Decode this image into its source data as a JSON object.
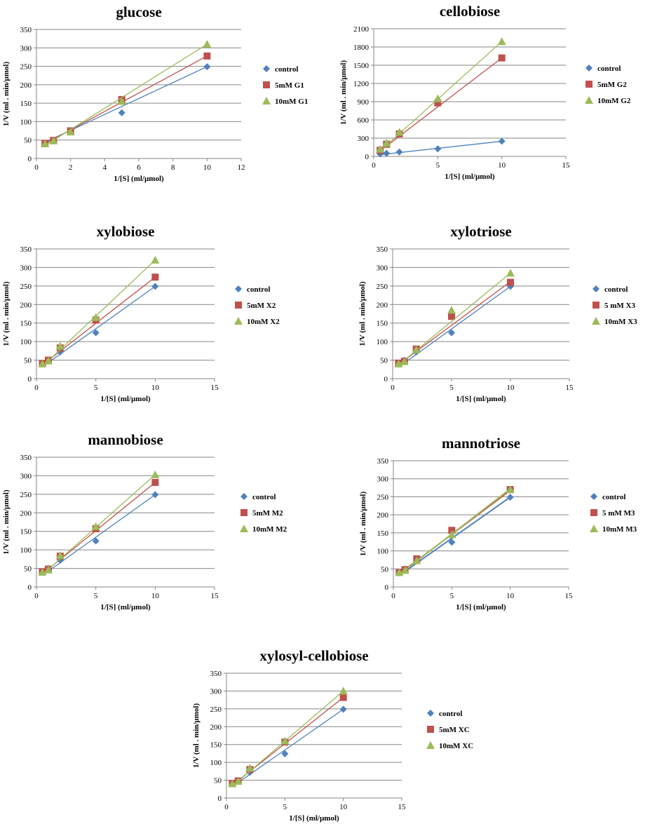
{
  "colors": {
    "control": "#4f81bd",
    "inhibitor1": "#c0504d",
    "inhibitor2": "#9bbb59",
    "grid": "#868686",
    "axis": "#868686"
  },
  "chart_data": [
    {
      "type": "scatter",
      "title": "glucose",
      "xlabel": "1/[S] (ml/µmol)",
      "ylabel": "1/V (ml . min/µmol)",
      "xlim": [
        0,
        12
      ],
      "xticks": [
        0,
        2,
        4,
        6,
        8,
        10,
        12
      ],
      "ylim": [
        0,
        350
      ],
      "yticks": [
        0,
        50,
        100,
        150,
        200,
        250,
        300,
        350
      ],
      "series": [
        {
          "name": "control",
          "marker": "diamond",
          "x": [
            0.5,
            1,
            2,
            5,
            10
          ],
          "y": [
            40,
            50,
            72,
            124,
            249
          ],
          "fit": [
            [
              0.5,
              44
            ],
            [
              10,
              249
            ]
          ]
        },
        {
          "name": "5mM G1",
          "marker": "square",
          "x": [
            0.5,
            1,
            2,
            5,
            10
          ],
          "y": [
            41,
            49,
            75,
            160,
            278
          ],
          "fit": [
            [
              0.5,
              40
            ],
            [
              10,
              278
            ]
          ]
        },
        {
          "name": "10mM G1",
          "marker": "triangle",
          "x": [
            0.5,
            1,
            2,
            5,
            10
          ],
          "y": [
            40,
            48,
            72,
            155,
            310
          ],
          "fit": [
            [
              0.5,
              35
            ],
            [
              10,
              310
            ]
          ]
        }
      ]
    },
    {
      "type": "scatter",
      "title": "cellobiose",
      "xlabel": "1/[S] (ml/µmol)",
      "ylabel": "1/V (ml . min/µmol)",
      "xlim": [
        0,
        15
      ],
      "xticks": [
        0,
        5,
        10,
        15
      ],
      "ylim": [
        0,
        2100
      ],
      "yticks": [
        0,
        300,
        600,
        900,
        1200,
        1500,
        1800,
        2100
      ],
      "series": [
        {
          "name": "control",
          "marker": "diamond",
          "x": [
            0.5,
            1,
            2,
            5,
            10
          ],
          "y": [
            40,
            50,
            72,
            124,
            249
          ],
          "fit": [
            [
              0.5,
              28
            ],
            [
              10,
              249
            ]
          ]
        },
        {
          "name": "5mM G2",
          "marker": "square",
          "x": [
            0.5,
            1,
            2,
            5,
            10
          ],
          "y": [
            100,
            200,
            370,
            880,
            1620
          ],
          "fit": [
            [
              0.5,
              90
            ],
            [
              10,
              1620
            ]
          ]
        },
        {
          "name": "10mM G2",
          "marker": "triangle",
          "x": [
            0.5,
            1,
            2,
            5,
            10
          ],
          "y": [
            120,
            220,
            400,
            950,
            1890
          ],
          "fit": [
            [
              0.5,
              90
            ],
            [
              10,
              1890
            ]
          ]
        }
      ]
    },
    {
      "type": "scatter",
      "title": "xylobiose",
      "xlabel": "1/[S] (ml/µmol)",
      "ylabel": "1/V (ml . min/µmol)",
      "xlim": [
        0,
        15
      ],
      "xticks": [
        0,
        5,
        10,
        15
      ],
      "ylim": [
        0,
        350
      ],
      "yticks": [
        0,
        50,
        100,
        150,
        200,
        250,
        300,
        350
      ],
      "series": [
        {
          "name": "control",
          "marker": "diamond",
          "x": [
            0.5,
            1,
            2,
            5,
            10
          ],
          "y": [
            40,
            50,
            72,
            124,
            249
          ],
          "fit": [
            [
              0.5,
              32
            ],
            [
              10,
              249
            ]
          ]
        },
        {
          "name": "5mM X2",
          "marker": "square",
          "x": [
            0.5,
            1,
            2,
            5,
            10
          ],
          "y": [
            41,
            50,
            83,
            158,
            274
          ],
          "fit": [
            [
              0.5,
              37
            ],
            [
              10,
              274
            ]
          ]
        },
        {
          "name": "10mM X2",
          "marker": "triangle",
          "x": [
            0.5,
            1,
            2,
            5,
            10
          ],
          "y": [
            40,
            48,
            88,
            165,
            320
          ],
          "fit": [
            [
              0.5,
              33
            ],
            [
              10,
              320
            ]
          ]
        }
      ]
    },
    {
      "type": "scatter",
      "title": "xylotriose",
      "xlabel": "1/[S] (ml/µmol)",
      "ylabel": "1/V (ml . min/µmol)",
      "xlim": [
        0,
        15
      ],
      "xticks": [
        0,
        5,
        10,
        15
      ],
      "ylim": [
        0,
        350
      ],
      "yticks": [
        0,
        50,
        100,
        150,
        200,
        250,
        300,
        350
      ],
      "series": [
        {
          "name": "control",
          "marker": "diamond",
          "x": [
            0.5,
            1,
            2,
            5,
            10
          ],
          "y": [
            40,
            50,
            72,
            124,
            249
          ],
          "fit": [
            [
              0.5,
              31
            ],
            [
              10,
              249
            ]
          ]
        },
        {
          "name": "5 mM X3",
          "marker": "square",
          "x": [
            0.5,
            1,
            2,
            5,
            10
          ],
          "y": [
            42,
            47,
            80,
            168,
            260
          ],
          "fit": [
            [
              0.5,
              38
            ],
            [
              10,
              262
            ]
          ]
        },
        {
          "name": "10mM X3",
          "marker": "triangle",
          "x": [
            0.5,
            1,
            2,
            5,
            10
          ],
          "y": [
            40,
            46,
            78,
            185,
            285
          ],
          "fit": [
            [
              0.5,
              37
            ],
            [
              10,
              285
            ]
          ]
        }
      ]
    },
    {
      "type": "scatter",
      "title": "mannobiose",
      "xlabel": "1/[S] (ml/µmol)",
      "ylabel": "1/V (ml . min/µmol)",
      "xlim": [
        0,
        15
      ],
      "xticks": [
        0,
        5,
        10,
        15
      ],
      "ylim": [
        0,
        350
      ],
      "yticks": [
        0,
        50,
        100,
        150,
        200,
        250,
        300,
        350
      ],
      "series": [
        {
          "name": "control",
          "marker": "diamond",
          "x": [
            0.5,
            1,
            2,
            5,
            10
          ],
          "y": [
            40,
            50,
            72,
            124,
            249
          ],
          "fit": [
            [
              0.5,
              31
            ],
            [
              10,
              249
            ]
          ]
        },
        {
          "name": "5mM M2",
          "marker": "square",
          "x": [
            0.5,
            1,
            2,
            5,
            10
          ],
          "y": [
            41,
            48,
            83,
            157,
            282
          ],
          "fit": [
            [
              0.5,
              35
            ],
            [
              10,
              282
            ]
          ]
        },
        {
          "name": "10mM M2",
          "marker": "triangle",
          "x": [
            0.5,
            1,
            2,
            5,
            10
          ],
          "y": [
            40,
            46,
            85,
            163,
            303
          ],
          "fit": [
            [
              0.5,
              33
            ],
            [
              10,
              303
            ]
          ]
        }
      ]
    },
    {
      "type": "scatter",
      "title": "mannotriose",
      "xlabel": "1/[S] (ml/µmol)",
      "ylabel": "1/V (ml . min/µmol)",
      "xlim": [
        0,
        15
      ],
      "xticks": [
        0,
        5,
        10,
        15
      ],
      "ylim": [
        0,
        350
      ],
      "yticks": [
        0,
        50,
        100,
        150,
        200,
        250,
        300,
        350
      ],
      "series": [
        {
          "name": "control",
          "marker": "diamond",
          "x": [
            0.5,
            1,
            2,
            5,
            10
          ],
          "y": [
            40,
            50,
            72,
            124,
            249
          ],
          "fit": [
            [
              0.5,
              32
            ],
            [
              10,
              249
            ]
          ]
        },
        {
          "name": "5 mM M3",
          "marker": "square",
          "x": [
            0.5,
            1,
            2,
            5,
            10
          ],
          "y": [
            40,
            48,
            78,
            157,
            270
          ],
          "fit": [
            [
              0.5,
              36
            ],
            [
              10,
              268
            ]
          ]
        },
        {
          "name": "10mM M3",
          "marker": "triangle",
          "x": [
            0.5,
            1,
            2,
            5,
            10
          ],
          "y": [
            40,
            46,
            73,
            145,
            270
          ],
          "fit": [
            [
              0.5,
              34
            ],
            [
              10,
              272
            ]
          ]
        }
      ]
    },
    {
      "type": "scatter",
      "title": "xylosyl-cellobiose",
      "xlabel": "1/[S] (ml/µmol)",
      "ylabel": "1/V (ml . min/µmol)",
      "xlim": [
        0,
        15
      ],
      "xticks": [
        0,
        5,
        10,
        15
      ],
      "ylim": [
        0,
        350
      ],
      "yticks": [
        0,
        50,
        100,
        150,
        200,
        250,
        300,
        350
      ],
      "series": [
        {
          "name": "control",
          "marker": "diamond",
          "x": [
            0.5,
            1,
            2,
            5,
            10
          ],
          "y": [
            40,
            50,
            72,
            124,
            249
          ],
          "fit": [
            [
              0.5,
              32
            ],
            [
              10,
              249
            ]
          ]
        },
        {
          "name": "5mM XC",
          "marker": "square",
          "x": [
            0.5,
            1,
            2,
            5,
            10
          ],
          "y": [
            41,
            48,
            80,
            157,
            282
          ],
          "fit": [
            [
              0.5,
              36
            ],
            [
              10,
              282
            ]
          ]
        },
        {
          "name": "10mM XC",
          "marker": "triangle",
          "x": [
            0.5,
            1,
            2,
            5,
            10
          ],
          "y": [
            40,
            47,
            84,
            160,
            300
          ],
          "fit": [
            [
              0.5,
              33
            ],
            [
              10,
              300
            ]
          ]
        }
      ]
    }
  ]
}
